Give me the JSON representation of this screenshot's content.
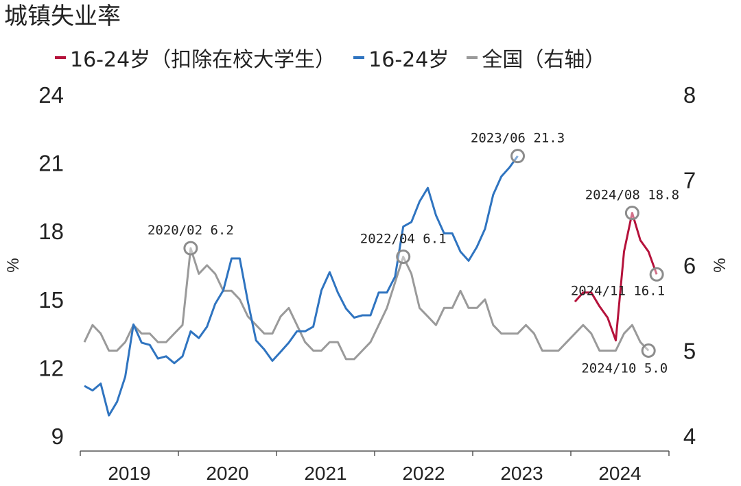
{
  "title": "城镇失业率",
  "legend": [
    {
      "label": "16-24岁（扣除在校大学生）",
      "color": "#b5123b"
    },
    {
      "label": "16-24岁",
      "color": "#2f74c0"
    },
    {
      "label": "全国（右轴）",
      "color": "#9a9a9a"
    }
  ],
  "chart_data": {
    "type": "line",
    "title": "城镇失业率",
    "xlabel": "",
    "ylabel": "%",
    "y2label": "%",
    "ylim": [
      9,
      24
    ],
    "y2lim": [
      4,
      8
    ],
    "yticks": [
      "9",
      "12",
      "15",
      "18",
      "21",
      "24"
    ],
    "y2ticks": [
      "4",
      "5",
      "6",
      "7",
      "8"
    ],
    "xticks": [
      "2019",
      "2020",
      "2021",
      "2022",
      "2023",
      "2024"
    ],
    "grid": false,
    "legend_position": "top",
    "series": [
      {
        "name": "16-24岁",
        "axis": "left",
        "color": "#2f74c0",
        "x": [
          "2019-01",
          "2019-02",
          "2019-03",
          "2019-04",
          "2019-05",
          "2019-06",
          "2019-07",
          "2019-08",
          "2019-09",
          "2019-10",
          "2019-11",
          "2019-12",
          "2020-01",
          "2020-02",
          "2020-03",
          "2020-04",
          "2020-05",
          "2020-06",
          "2020-07",
          "2020-08",
          "2020-09",
          "2020-10",
          "2020-11",
          "2020-12",
          "2021-01",
          "2021-02",
          "2021-03",
          "2021-04",
          "2021-05",
          "2021-06",
          "2021-07",
          "2021-08",
          "2021-09",
          "2021-10",
          "2021-11",
          "2021-12",
          "2022-01",
          "2022-02",
          "2022-03",
          "2022-04",
          "2022-05",
          "2022-06",
          "2022-07",
          "2022-08",
          "2022-09",
          "2022-10",
          "2022-11",
          "2022-12",
          "2023-01",
          "2023-02",
          "2023-03",
          "2023-04",
          "2023-05",
          "2023-06"
        ],
        "values": [
          11.2,
          11.0,
          11.3,
          9.9,
          10.5,
          11.6,
          13.9,
          13.1,
          13.0,
          12.4,
          12.5,
          12.2,
          12.5,
          13.6,
          13.3,
          13.8,
          14.8,
          15.4,
          16.8,
          16.8,
          14.9,
          13.2,
          12.8,
          12.3,
          12.7,
          13.1,
          13.6,
          13.6,
          13.8,
          15.4,
          16.2,
          15.3,
          14.6,
          14.2,
          14.3,
          14.3,
          15.3,
          15.3,
          16.0,
          18.2,
          18.4,
          19.3,
          19.9,
          18.7,
          17.9,
          17.9,
          17.1,
          16.7,
          17.3,
          18.1,
          19.6,
          20.4,
          20.8,
          21.3
        ]
      },
      {
        "name": "16-24岁（扣除在校大学生）",
        "axis": "left",
        "color": "#b5123b",
        "x": [
          "2024-01",
          "2024-02",
          "2024-03",
          "2024-04",
          "2024-05",
          "2024-06",
          "2024-07",
          "2024-08",
          "2024-09",
          "2024-10",
          "2024-11"
        ],
        "values": [
          14.9,
          15.3,
          15.3,
          14.7,
          14.2,
          13.2,
          17.1,
          18.8,
          17.6,
          17.1,
          16.1
        ]
      },
      {
        "name": "全国（右轴）",
        "axis": "right",
        "color": "#9a9a9a",
        "x": [
          "2019-01",
          "2019-02",
          "2019-03",
          "2019-04",
          "2019-05",
          "2019-06",
          "2019-07",
          "2019-08",
          "2019-09",
          "2019-10",
          "2019-11",
          "2019-12",
          "2020-01",
          "2020-02",
          "2020-03",
          "2020-04",
          "2020-05",
          "2020-06",
          "2020-07",
          "2020-08",
          "2020-09",
          "2020-10",
          "2020-11",
          "2020-12",
          "2021-01",
          "2021-02",
          "2021-03",
          "2021-04",
          "2021-05",
          "2021-06",
          "2021-07",
          "2021-08",
          "2021-09",
          "2021-10",
          "2021-11",
          "2021-12",
          "2022-01",
          "2022-02",
          "2022-03",
          "2022-04",
          "2022-05",
          "2022-06",
          "2022-07",
          "2022-08",
          "2022-09",
          "2022-10",
          "2022-11",
          "2022-12",
          "2023-01",
          "2023-02",
          "2023-03",
          "2023-04",
          "2023-05",
          "2023-06",
          "2023-07",
          "2023-08",
          "2023-09",
          "2023-10",
          "2023-11",
          "2023-12",
          "2024-01",
          "2024-02",
          "2024-03",
          "2024-04",
          "2024-05",
          "2024-06",
          "2024-07",
          "2024-08",
          "2024-09",
          "2024-10"
        ],
        "values": [
          5.1,
          5.3,
          5.2,
          5.0,
          5.0,
          5.1,
          5.3,
          5.2,
          5.2,
          5.1,
          5.1,
          5.2,
          5.3,
          6.2,
          5.9,
          6.0,
          5.9,
          5.7,
          5.7,
          5.6,
          5.4,
          5.3,
          5.2,
          5.2,
          5.4,
          5.5,
          5.3,
          5.1,
          5.0,
          5.0,
          5.1,
          5.1,
          4.9,
          4.9,
          5.0,
          5.1,
          5.3,
          5.5,
          5.8,
          6.1,
          5.9,
          5.5,
          5.4,
          5.3,
          5.5,
          5.5,
          5.7,
          5.5,
          5.5,
          5.6,
          5.3,
          5.2,
          5.2,
          5.2,
          5.3,
          5.2,
          5.0,
          5.0,
          5.0,
          5.1,
          5.2,
          5.3,
          5.2,
          5.0,
          5.0,
          5.0,
          5.2,
          5.3,
          5.1,
          5.0
        ]
      }
    ],
    "annotations": [
      {
        "text": "2020/02  6.2",
        "series": "全国（右轴）",
        "x": "2020-02",
        "y": 6.2,
        "marker": "circle"
      },
      {
        "text": "2022/04  6.1",
        "series": "全国（右轴）",
        "x": "2022-04",
        "y": 6.1,
        "marker": "circle"
      },
      {
        "text": "2023/06  21.3",
        "series": "16-24岁",
        "x": "2023-06",
        "y": 21.3,
        "marker": "circle"
      },
      {
        "text": "2024/08  18.8",
        "series": "16-24岁（扣除在校大学生）",
        "x": "2024-08",
        "y": 18.8,
        "marker": "circle"
      },
      {
        "text": "2024/11  16.1",
        "series": "16-24岁（扣除在校大学生）",
        "x": "2024-11",
        "y": 16.1,
        "marker": "circle"
      },
      {
        "text": "2024/10  5.0",
        "series": "全国（右轴）",
        "x": "2024-10",
        "y": 5.0,
        "marker": "circle"
      }
    ]
  }
}
